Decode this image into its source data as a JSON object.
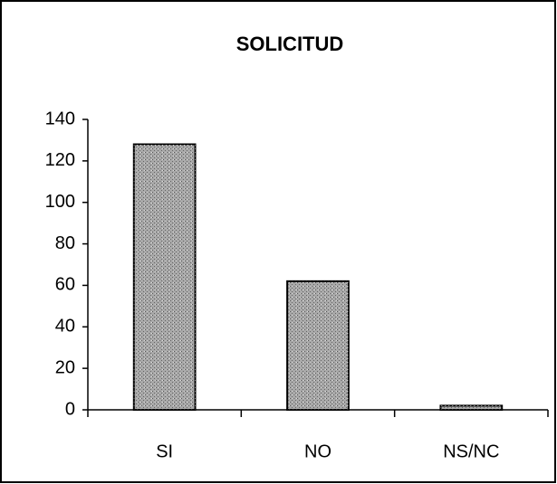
{
  "chart_data": {
    "type": "bar",
    "title": "SOLICITUD",
    "categories": [
      "SI",
      "NO",
      "NS/NC"
    ],
    "values": [
      128,
      62,
      2
    ],
    "color": "#a9a9a9",
    "ylim": [
      0,
      140
    ],
    "yticks": [
      0,
      20,
      40,
      60,
      80,
      100,
      120,
      140
    ],
    "grid": false
  }
}
